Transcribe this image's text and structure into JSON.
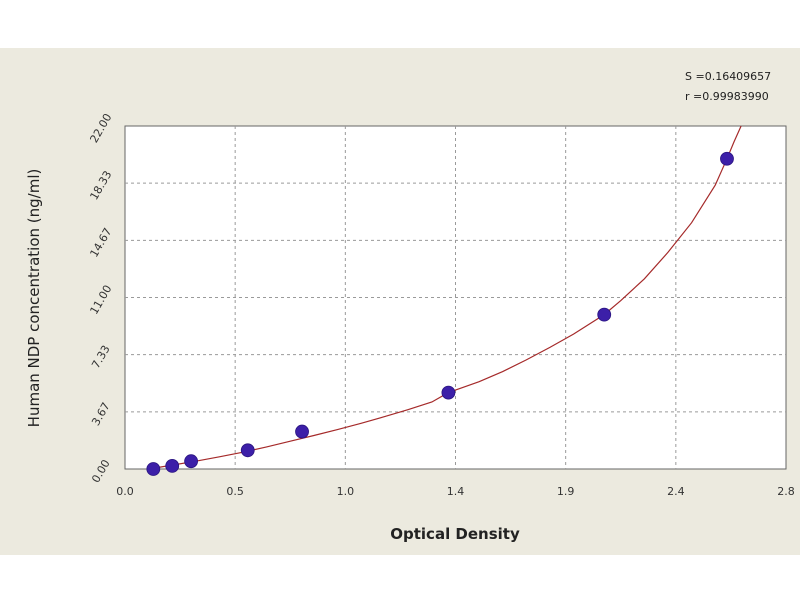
{
  "chart_data": {
    "type": "scatter",
    "title": "",
    "xlabel": "Optical Density",
    "ylabel": "Human NDP concentration (ng/ml)",
    "xlim": [
      0.0,
      2.8
    ],
    "ylim": [
      0.0,
      22.0
    ],
    "x_ticks": [
      "0.0",
      "0.5",
      "1.0",
      "1.4",
      "1.9",
      "2.4",
      "2.8"
    ],
    "y_ticks": [
      "0.00",
      "3.67",
      "7.33",
      "11.00",
      "14.67",
      "18.33",
      "22.00"
    ],
    "grid": true,
    "legend": "none",
    "annotations": {
      "s": "S =0.16409657",
      "r": "r =0.99983990"
    },
    "colors": {
      "points": "#3c1fa8",
      "curve": "#a52a2a",
      "plot_background": "#ffffff",
      "frame_background": "#eceadf"
    },
    "series": [
      {
        "name": "",
        "points": [
          {
            "x": 0.12,
            "y": 0.0
          },
          {
            "x": 0.2,
            "y": 0.2
          },
          {
            "x": 0.28,
            "y": 0.5
          },
          {
            "x": 0.52,
            "y": 1.2
          },
          {
            "x": 0.75,
            "y": 2.4
          },
          {
            "x": 1.37,
            "y": 4.9
          },
          {
            "x": 2.03,
            "y": 9.9
          },
          {
            "x": 2.55,
            "y": 19.9
          }
        ]
      }
    ],
    "fit_curve": [
      [
        0.1,
        0.0
      ],
      [
        0.2,
        0.25
      ],
      [
        0.3,
        0.5
      ],
      [
        0.4,
        0.78
      ],
      [
        0.5,
        1.08
      ],
      [
        0.6,
        1.42
      ],
      [
        0.7,
        1.78
      ],
      [
        0.8,
        2.15
      ],
      [
        0.9,
        2.53
      ],
      [
        1.0,
        2.93
      ],
      [
        1.1,
        3.36
      ],
      [
        1.2,
        3.81
      ],
      [
        1.3,
        4.3
      ],
      [
        1.37,
        4.9
      ],
      [
        1.5,
        5.6
      ],
      [
        1.6,
        6.25
      ],
      [
        1.7,
        7.0
      ],
      [
        1.8,
        7.8
      ],
      [
        1.9,
        8.65
      ],
      [
        2.03,
        9.9
      ],
      [
        2.1,
        10.8
      ],
      [
        2.2,
        12.2
      ],
      [
        2.3,
        13.9
      ],
      [
        2.4,
        15.8
      ],
      [
        2.5,
        18.2
      ],
      [
        2.55,
        19.9
      ],
      [
        2.58,
        21.0
      ],
      [
        2.61,
        22.0
      ]
    ]
  }
}
